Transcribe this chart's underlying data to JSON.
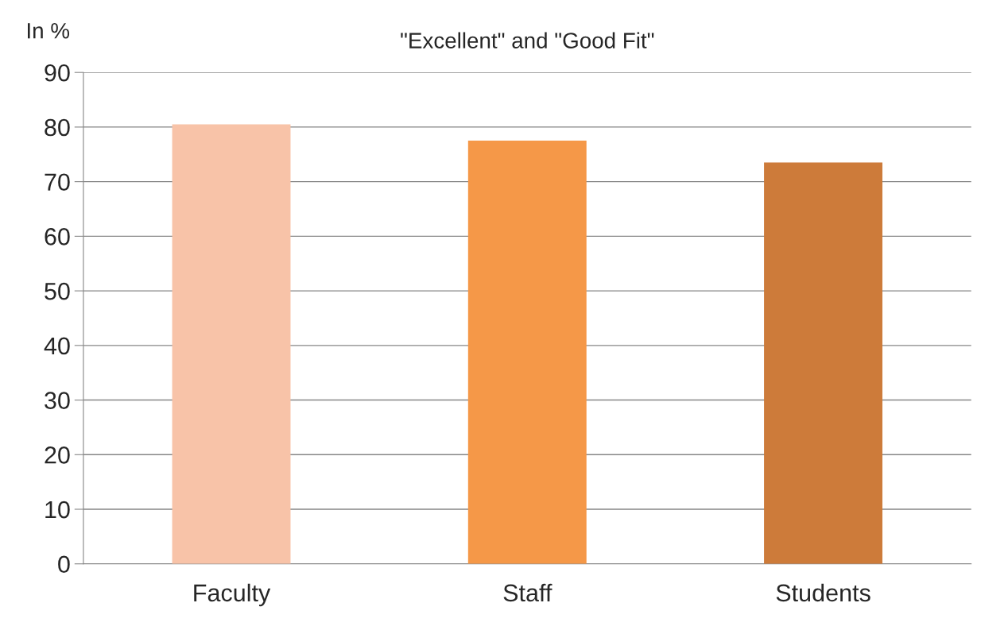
{
  "chart_data": {
    "type": "bar",
    "title": "\"Excellent\" and \"Good Fit\"",
    "ylabel": "In %",
    "categories": [
      "Faculty",
      "Staff",
      "Students"
    ],
    "values": [
      80.5,
      77.5,
      73.5
    ],
    "colors": [
      "#f8c3a8",
      "#f59848",
      "#cd7b3a"
    ],
    "ylim": [
      0,
      90
    ],
    "yticks": [
      0,
      10,
      20,
      30,
      40,
      50,
      60,
      70,
      80,
      90
    ],
    "grid": "y",
    "legend": false
  }
}
